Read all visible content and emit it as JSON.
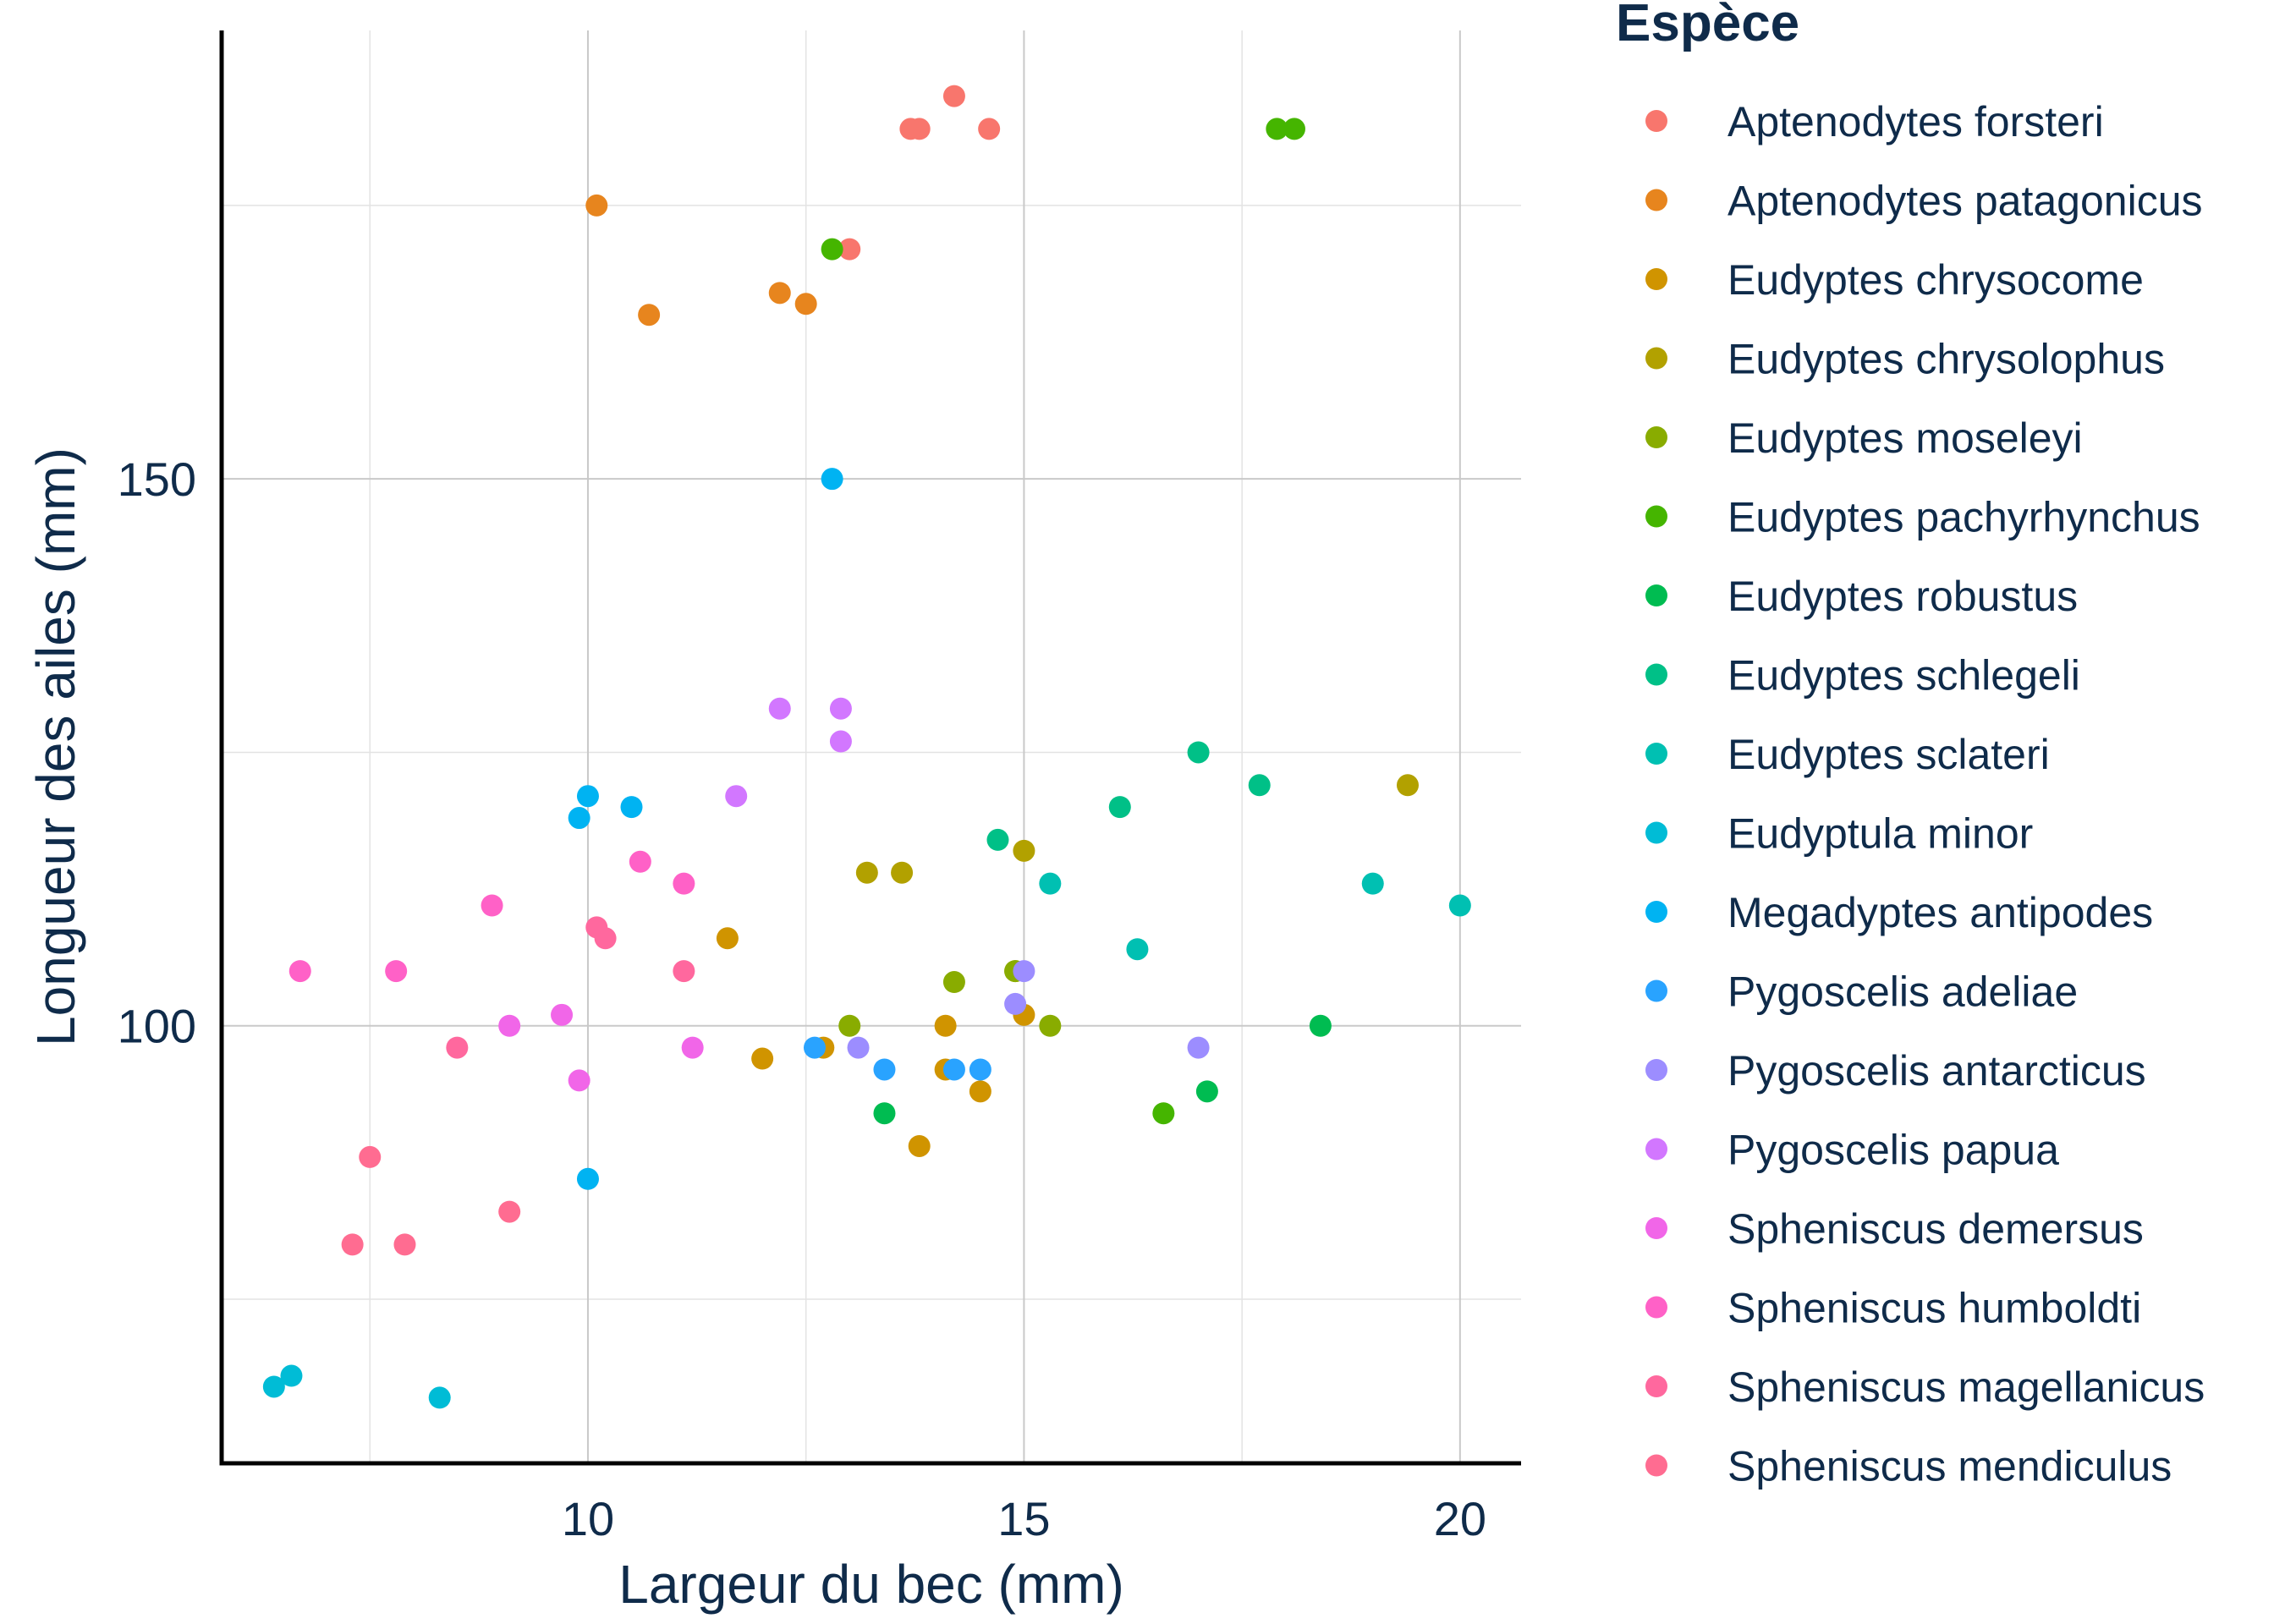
{
  "chart_data": {
    "type": "scatter",
    "xlabel": "Largeur du bec (mm)",
    "ylabel": "Longueur des ailes (mm)",
    "xlim": [
      5.8,
      20.7
    ],
    "ylim": [
      60,
      191
    ],
    "x_ticks": [
      10,
      15,
      20
    ],
    "y_ticks": [
      100,
      150
    ],
    "x_minor_ticks": [
      7.5,
      12.5,
      17.5
    ],
    "y_minor_ticks": [
      75,
      125,
      175
    ],
    "grid": true,
    "legend": {
      "title": "Espèce",
      "position": "right"
    },
    "series": [
      {
        "name": "Aptenodytes forsteri",
        "color": "#F8766D",
        "points": [
          [
            14.2,
            185
          ],
          [
            13.7,
            182
          ],
          [
            13.8,
            182
          ],
          [
            14.6,
            182
          ],
          [
            13.0,
            171
          ]
        ]
      },
      {
        "name": "Aptenodytes patagonicus",
        "color": "#E7851E",
        "points": [
          [
            10.1,
            175
          ],
          [
            12.2,
            167
          ],
          [
            12.5,
            166
          ],
          [
            10.7,
            165
          ]
        ]
      },
      {
        "name": "Eudyptes chrysocome",
        "color": "#D09400",
        "points": [
          [
            11.6,
            108
          ],
          [
            12.0,
            97
          ],
          [
            12.7,
            98
          ],
          [
            14.1,
            100
          ],
          [
            14.1,
            96
          ],
          [
            14.5,
            94
          ],
          [
            15.0,
            101
          ],
          [
            13.8,
            89
          ]
        ]
      },
      {
        "name": "Eudyptes chrysolophus",
        "color": "#B2A100",
        "points": [
          [
            13.2,
            114
          ],
          [
            13.6,
            114
          ],
          [
            15.0,
            116
          ],
          [
            19.4,
            122
          ],
          [
            14.9,
            105
          ]
        ]
      },
      {
        "name": "Eudyptes moseleyi",
        "color": "#89AC00",
        "points": [
          [
            13.0,
            100
          ],
          [
            14.2,
            104
          ],
          [
            14.9,
            105
          ],
          [
            15.3,
            100
          ]
        ]
      },
      {
        "name": "Eudyptes pachyrhynchus",
        "color": "#45B500",
        "points": [
          [
            12.8,
            171
          ],
          [
            17.9,
            182
          ],
          [
            18.1,
            182
          ],
          [
            16.6,
            92
          ]
        ]
      },
      {
        "name": "Eudyptes robustus",
        "color": "#00BC51",
        "points": [
          [
            13.4,
            92
          ],
          [
            17.1,
            94
          ],
          [
            18.4,
            100
          ]
        ]
      },
      {
        "name": "Eudyptes schlegeli",
        "color": "#00C087",
        "points": [
          [
            14.7,
            117
          ],
          [
            16.1,
            120
          ],
          [
            17.0,
            125
          ],
          [
            17.7,
            122
          ]
        ]
      },
      {
        "name": "Eudyptes sclateri",
        "color": "#00C0B2",
        "points": [
          [
            15.3,
            113
          ],
          [
            16.3,
            107
          ],
          [
            19.0,
            113
          ],
          [
            20.0,
            111
          ]
        ]
      },
      {
        "name": "Eudyptula minor",
        "color": "#00BCD6",
        "points": [
          [
            6.4,
            67
          ],
          [
            6.6,
            68
          ],
          [
            8.3,
            66
          ]
        ]
      },
      {
        "name": "Megadyptes antipodes",
        "color": "#00B3F2",
        "points": [
          [
            12.8,
            150
          ],
          [
            10.0,
            121
          ],
          [
            10.5,
            120
          ],
          [
            9.9,
            119
          ],
          [
            10.0,
            86
          ]
        ]
      },
      {
        "name": "Pygoscelis adeliae",
        "color": "#29A3FF",
        "points": [
          [
            12.6,
            98
          ],
          [
            13.4,
            96
          ],
          [
            14.2,
            96
          ],
          [
            14.5,
            96
          ]
        ]
      },
      {
        "name": "Pygoscelis antarcticus",
        "color": "#9C8DFF",
        "points": [
          [
            13.1,
            98
          ],
          [
            14.9,
            102
          ],
          [
            15.0,
            105
          ],
          [
            17.0,
            98
          ]
        ]
      },
      {
        "name": "Pygoscelis papua",
        "color": "#D277FF",
        "points": [
          [
            12.2,
            129
          ],
          [
            12.9,
            129
          ],
          [
            12.9,
            126
          ],
          [
            11.7,
            121
          ]
        ]
      },
      {
        "name": "Spheniscus demersus",
        "color": "#F166E8",
        "points": [
          [
            9.7,
            101
          ],
          [
            9.1,
            100
          ],
          [
            9.9,
            95
          ],
          [
            11.2,
            98
          ]
        ]
      },
      {
        "name": "Spheniscus humboldti",
        "color": "#FF61C7",
        "points": [
          [
            6.7,
            105
          ],
          [
            7.8,
            105
          ],
          [
            8.9,
            111
          ],
          [
            10.6,
            115
          ],
          [
            11.1,
            113
          ]
        ]
      },
      {
        "name": "Spheniscus magellanicus",
        "color": "#FF689E",
        "points": [
          [
            8.5,
            98
          ],
          [
            10.1,
            109
          ],
          [
            10.2,
            108
          ],
          [
            11.1,
            105
          ]
        ]
      },
      {
        "name": "Spheniscus mendiculus",
        "color": "#FF6C91",
        "points": [
          [
            7.5,
            88
          ],
          [
            7.3,
            80
          ],
          [
            7.9,
            80
          ],
          [
            9.1,
            83
          ]
        ]
      }
    ]
  }
}
